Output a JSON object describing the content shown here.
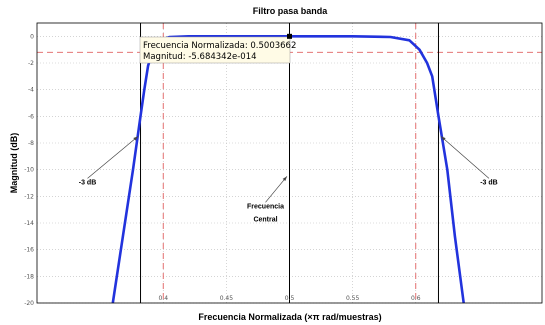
{
  "chart_data": {
    "type": "line",
    "title": "Filtro pasa banda",
    "xlabel": "Frecuencia Normalizada (×π rad/muestras)",
    "ylabel": "Magnitud (dB)",
    "xlim": [
      0.3,
      0.7
    ],
    "ylim": [
      -20,
      1
    ],
    "xticks": [
      "0.4",
      "0.45",
      "0.5",
      "0.55",
      "0.6"
    ],
    "yticks": [
      "0",
      "-2",
      "-4",
      "-6",
      "-8",
      "-10",
      "-12",
      "-14",
      "-16",
      "-18",
      "-20"
    ],
    "grid": true,
    "series": [
      {
        "color": "#2233dd",
        "x": [
          0.36,
          0.368,
          0.376,
          0.382,
          0.385,
          0.388,
          0.392,
          0.397,
          0.405,
          0.42,
          0.45,
          0.5,
          0.55,
          0.58,
          0.595,
          0.603,
          0.609,
          0.613,
          0.618,
          0.625,
          0.631,
          0.638
        ],
        "y": [
          -20,
          -15,
          -10,
          -6,
          -4,
          -2.2,
          -1.0,
          -0.3,
          -0.05,
          0,
          0,
          0,
          0,
          -0.05,
          -0.3,
          -1.0,
          -2.0,
          -3.0,
          -6.0,
          -10,
          -15,
          -20
        ]
      }
    ],
    "minus3db_line_y": -1.2,
    "vlines_solid": [
      0.382,
      0.5,
      0.618
    ],
    "vlines_dashed": [
      0.4,
      0.6
    ],
    "datatip": {
      "x": 0.5,
      "y": 0,
      "line1": "Frecuencia Normalizada: 0.5003662",
      "line2": "Magnitud: -5.684342e-014"
    },
    "annotations": [
      {
        "text": "-3 dB",
        "tx": 0.34,
        "ty": -11.1,
        "ax": 0.38,
        "ay": -7.5
      },
      {
        "text": "Frecuencia",
        "tx": 0.481,
        "ty": -12.9,
        "ax": 0.498,
        "ay": -10.5
      },
      {
        "text": "Central",
        "tx": 0.481,
        "ty": -13.9,
        "ax": null,
        "ay": null
      },
      {
        "text": "-3 dB",
        "tx": 0.658,
        "ty": -11.1,
        "ax": 0.62,
        "ay": -7.5
      }
    ],
    "colors": {
      "curve": "#2233dd",
      "dashed": "#e06060",
      "solid": "#000000",
      "grid": "#bbbbbb"
    }
  }
}
